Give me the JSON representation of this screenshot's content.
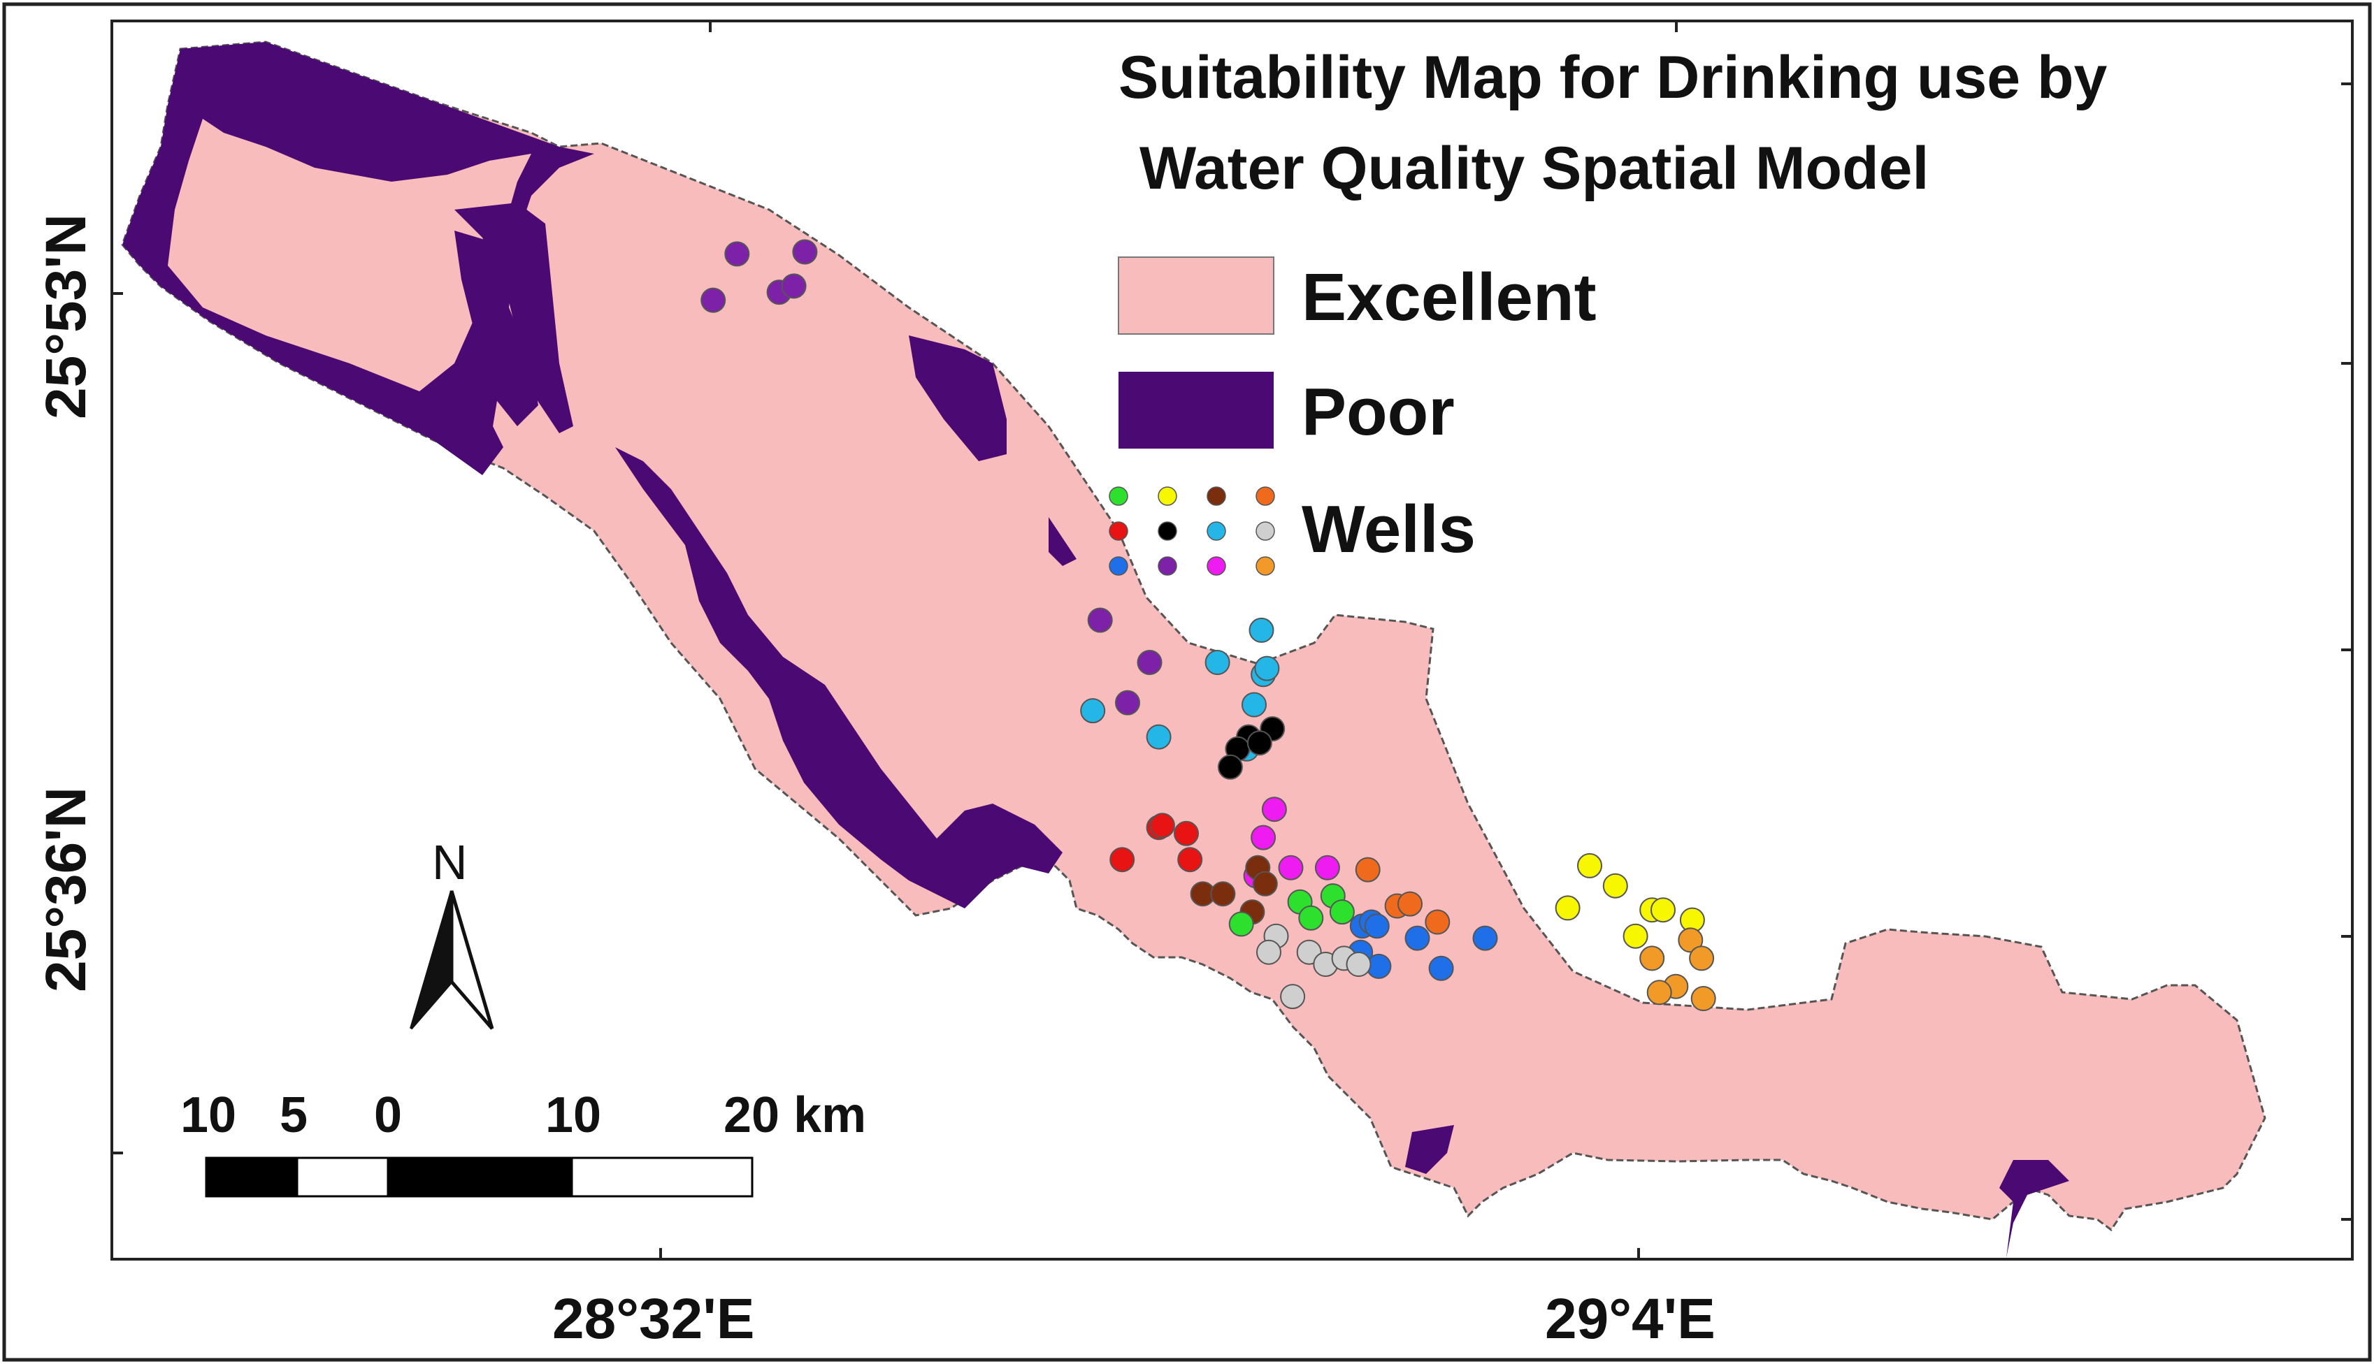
{
  "title": {
    "line1": "Suitability Map for Drinking use by",
    "line2": "Water Quality Spatial Model"
  },
  "legend": {
    "excellent": {
      "label": "Excellent",
      "color": "#f9bcbc"
    },
    "poor": {
      "label": "Poor",
      "color": "#4b0a73"
    },
    "wells": {
      "label": "Wells"
    },
    "well_colors": [
      "#2ee02e",
      "#f7f700",
      "#7a2e0e",
      "#ef6a1c",
      "#e81414",
      "#000000",
      "#23b6e6",
      "#cfcfcf",
      "#1e6fe8",
      "#7d22a8",
      "#ee1cf0",
      "#f29a28"
    ]
  },
  "axes": {
    "lat_labels": [
      "25°53'N",
      "25°36'N"
    ],
    "lon_labels": [
      "28°32'E",
      "29°4'E"
    ]
  },
  "north_arrow": {
    "label": "N",
    "icon": "north-arrow-icon"
  },
  "scale_bar": {
    "labels": [
      "10",
      "5",
      "0",
      "10",
      "20 km"
    ]
  },
  "wells": [
    {
      "g": "purple",
      "lon": 28.575,
      "lat": 25.903
    },
    {
      "g": "purple",
      "lon": 28.612,
      "lat": 25.904
    },
    {
      "g": "purple",
      "lon": 28.598,
      "lat": 25.884
    },
    {
      "g": "purple",
      "lon": 28.606,
      "lat": 25.887
    },
    {
      "g": "purple",
      "lon": 28.562,
      "lat": 25.88
    },
    {
      "g": "purple",
      "lon": 28.773,
      "lat": 25.721
    },
    {
      "g": "purple",
      "lon": 28.8,
      "lat": 25.7
    },
    {
      "g": "purple",
      "lon": 28.788,
      "lat": 25.68
    },
    {
      "g": "cyan",
      "lon": 28.861,
      "lat": 25.716
    },
    {
      "g": "cyan",
      "lon": 28.837,
      "lat": 25.7
    },
    {
      "g": "cyan",
      "lon": 28.862,
      "lat": 25.694
    },
    {
      "g": "cyan",
      "lon": 28.864,
      "lat": 25.697
    },
    {
      "g": "cyan",
      "lon": 28.857,
      "lat": 25.679
    },
    {
      "g": "cyan",
      "lon": 28.769,
      "lat": 25.676
    },
    {
      "g": "cyan",
      "lon": 28.805,
      "lat": 25.663
    },
    {
      "g": "cyan",
      "lon": 28.853,
      "lat": 25.657
    },
    {
      "g": "black",
      "lon": 28.854,
      "lat": 25.663
    },
    {
      "g": "black",
      "lon": 28.867,
      "lat": 25.667
    },
    {
      "g": "black",
      "lon": 28.848,
      "lat": 25.657
    },
    {
      "g": "black",
      "lon": 28.86,
      "lat": 25.66
    },
    {
      "g": "black",
      "lon": 28.844,
      "lat": 25.648
    },
    {
      "g": "magenta",
      "lon": 28.868,
      "lat": 25.627
    },
    {
      "g": "magenta",
      "lon": 28.862,
      "lat": 25.613
    },
    {
      "g": "magenta",
      "lon": 28.877,
      "lat": 25.598
    },
    {
      "g": "magenta",
      "lon": 28.897,
      "lat": 25.598
    },
    {
      "g": "magenta",
      "lon": 28.858,
      "lat": 25.594
    },
    {
      "g": "red",
      "lon": 28.805,
      "lat": 25.618
    },
    {
      "g": "red",
      "lon": 28.807,
      "lat": 25.619
    },
    {
      "g": "red",
      "lon": 28.82,
      "lat": 25.615
    },
    {
      "g": "red",
      "lon": 28.785,
      "lat": 25.602
    },
    {
      "g": "red",
      "lon": 28.822,
      "lat": 25.602
    },
    {
      "g": "brown",
      "lon": 28.859,
      "lat": 25.598
    },
    {
      "g": "brown",
      "lon": 28.863,
      "lat": 25.59
    },
    {
      "g": "brown",
      "lon": 28.829,
      "lat": 25.585
    },
    {
      "g": "brown",
      "lon": 28.84,
      "lat": 25.585
    },
    {
      "g": "brown",
      "lon": 28.856,
      "lat": 25.576
    },
    {
      "g": "green",
      "lon": 28.85,
      "lat": 25.57
    },
    {
      "g": "green",
      "lon": 28.882,
      "lat": 25.581
    },
    {
      "g": "green",
      "lon": 28.9,
      "lat": 25.584
    },
    {
      "g": "green",
      "lon": 28.888,
      "lat": 25.573
    },
    {
      "g": "green",
      "lon": 28.905,
      "lat": 25.576
    },
    {
      "g": "orange",
      "lon": 28.919,
      "lat": 25.597
    },
    {
      "g": "orange",
      "lon": 28.935,
      "lat": 25.579
    },
    {
      "g": "orange",
      "lon": 28.942,
      "lat": 25.58
    },
    {
      "g": "orange",
      "lon": 28.957,
      "lat": 25.571
    },
    {
      "g": "blue",
      "lon": 28.916,
      "lat": 25.569
    },
    {
      "g": "blue",
      "lon": 28.921,
      "lat": 25.571
    },
    {
      "g": "blue",
      "lon": 28.924,
      "lat": 25.569
    },
    {
      "g": "blue",
      "lon": 28.946,
      "lat": 25.563
    },
    {
      "g": "blue",
      "lon": 28.983,
      "lat": 25.563
    },
    {
      "g": "blue",
      "lon": 28.915,
      "lat": 25.556
    },
    {
      "g": "blue",
      "lon": 28.925,
      "lat": 25.549
    },
    {
      "g": "blue",
      "lon": 28.959,
      "lat": 25.548
    },
    {
      "g": "gray",
      "lon": 28.869,
      "lat": 25.564
    },
    {
      "g": "gray",
      "lon": 28.865,
      "lat": 25.556
    },
    {
      "g": "gray",
      "lon": 28.887,
      "lat": 25.556
    },
    {
      "g": "gray",
      "lon": 28.896,
      "lat": 25.55
    },
    {
      "g": "gray",
      "lon": 28.906,
      "lat": 25.553
    },
    {
      "g": "gray",
      "lon": 28.914,
      "lat": 25.55
    },
    {
      "g": "gray",
      "lon": 28.878,
      "lat": 25.534
    },
    {
      "g": "yellow",
      "lon": 29.04,
      "lat": 25.599
    },
    {
      "g": "yellow",
      "lon": 29.054,
      "lat": 25.589
    },
    {
      "g": "yellow",
      "lon": 29.028,
      "lat": 25.578
    },
    {
      "g": "yellow",
      "lon": 29.074,
      "lat": 25.577
    },
    {
      "g": "yellow",
      "lon": 29.08,
      "lat": 25.577
    },
    {
      "g": "yellow",
      "lon": 29.096,
      "lat": 25.572
    },
    {
      "g": "yellow",
      "lon": 29.065,
      "lat": 25.564
    },
    {
      "g": "orange2",
      "lon": 29.095,
      "lat": 25.562
    },
    {
      "g": "orange2",
      "lon": 29.074,
      "lat": 25.553
    },
    {
      "g": "orange2",
      "lon": 29.101,
      "lat": 25.553
    },
    {
      "g": "orange2",
      "lon": 29.087,
      "lat": 25.539
    },
    {
      "g": "orange2",
      "lon": 29.078,
      "lat": 25.536
    },
    {
      "g": "orange2",
      "lon": 29.102,
      "lat": 25.533
    }
  ]
}
